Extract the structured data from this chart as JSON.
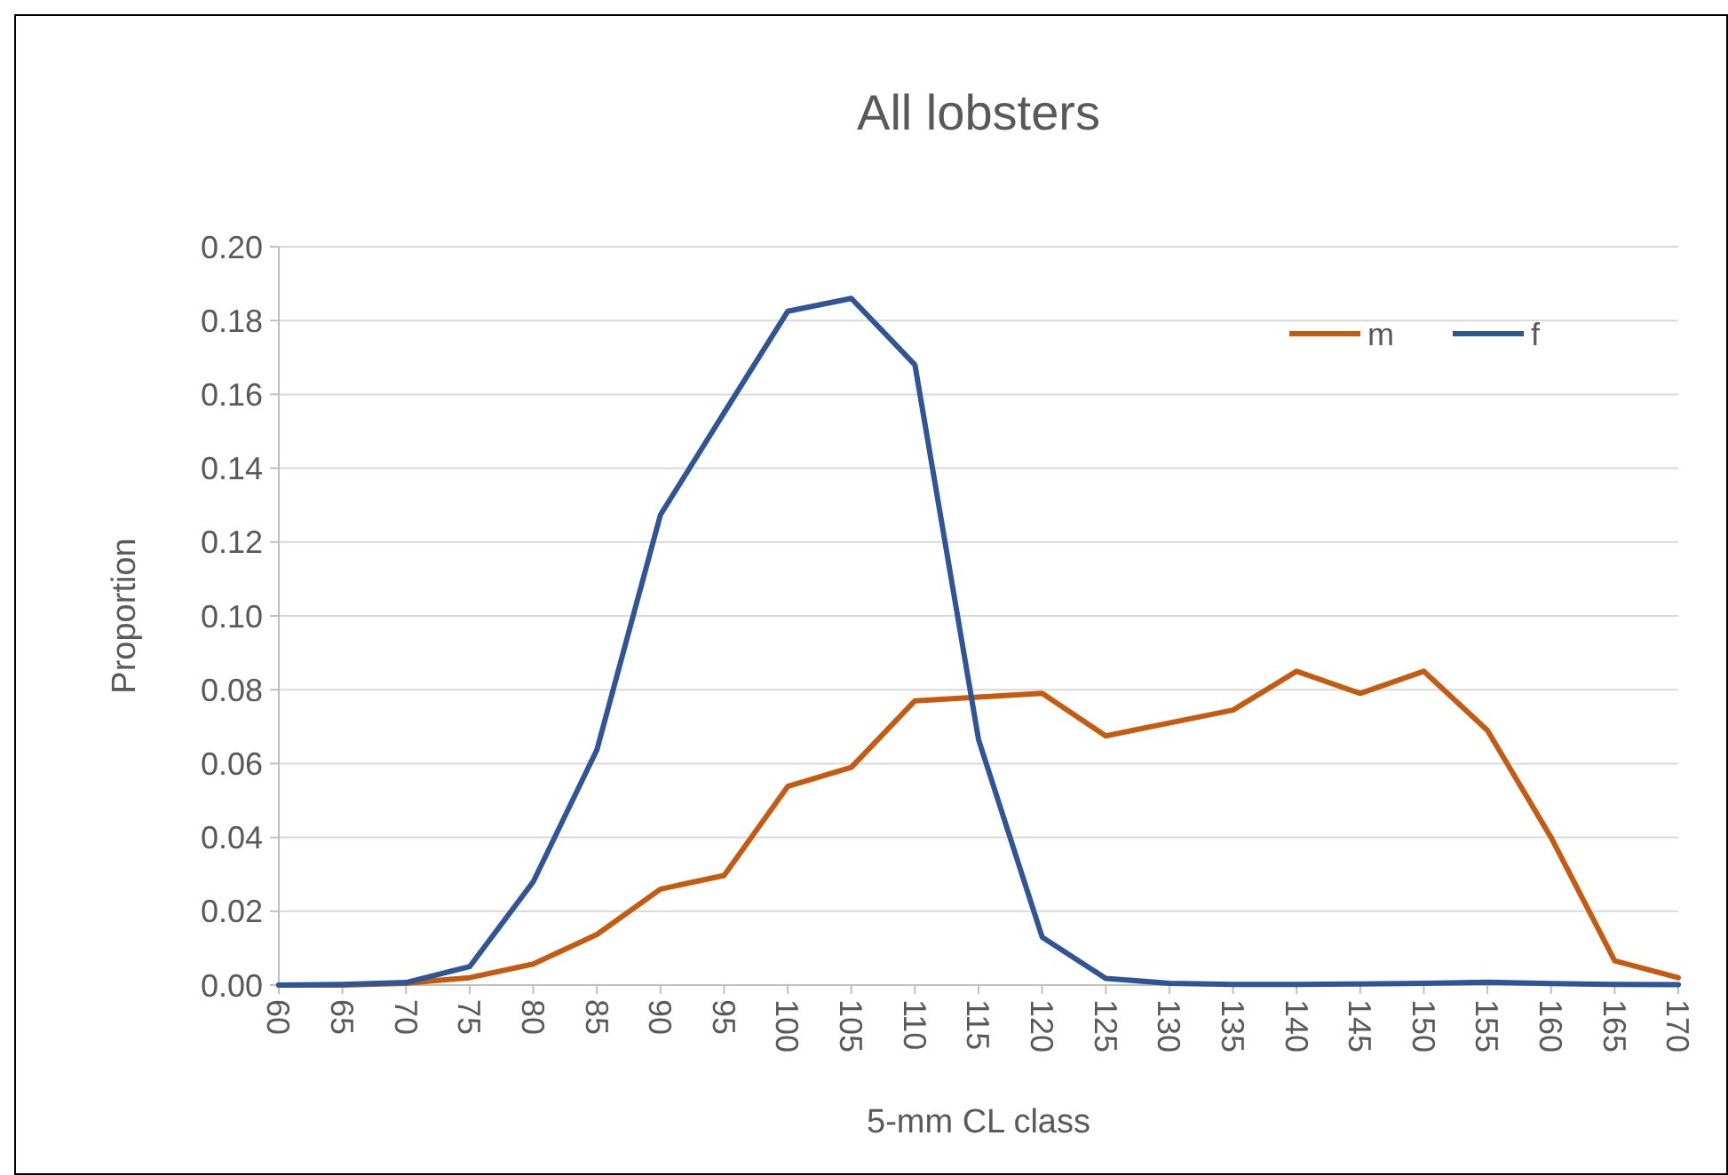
{
  "chart_data": {
    "type": "line",
    "title": "All lobsters",
    "xlabel": "5-mm CL class",
    "ylabel": "Proportion",
    "categories": [
      "60",
      "65",
      "70",
      "75",
      "80",
      "85",
      "90",
      "95",
      "100",
      "105",
      "110",
      "115",
      "120",
      "125",
      "130",
      "135",
      "140",
      "145",
      "150",
      "155",
      "160",
      "165",
      "170"
    ],
    "series": [
      {
        "name": "m",
        "color": "#c55a11",
        "values": [
          0,
          0,
          0.0005,
          0.002,
          0.0057,
          0.0137,
          0.026,
          0.0297,
          0.0538,
          0.059,
          0.077,
          0.078,
          0.079,
          0.0675,
          0.071,
          0.0745,
          0.085,
          0.079,
          0.085,
          0.069,
          0.04,
          0.0066,
          0.002
        ]
      },
      {
        "name": "f",
        "color": "#2f5597",
        "values": [
          0,
          0.0002,
          0.0007,
          0.005,
          0.028,
          0.0637,
          0.1274,
          0.155,
          0.1825,
          0.186,
          0.168,
          0.0665,
          0.013,
          0.0018,
          0.0005,
          0.0002,
          0.0002,
          0.0003,
          0.0005,
          0.0008,
          0.0004,
          0.0002,
          0.0001
        ]
      }
    ],
    "ylim": [
      0,
      0.2
    ],
    "yticks": [
      {
        "value": 0,
        "label": "0.00"
      },
      {
        "value": 0.02,
        "label": "0.02"
      },
      {
        "value": 0.04,
        "label": "0.04"
      },
      {
        "value": 0.06,
        "label": "0.06"
      },
      {
        "value": 0.08,
        "label": "0.08"
      },
      {
        "value": 0.1,
        "label": "0.10"
      },
      {
        "value": 0.12,
        "label": "0.12"
      },
      {
        "value": 0.14,
        "label": "0.14"
      },
      {
        "value": 0.16,
        "label": "0.16"
      },
      {
        "value": 0.18,
        "label": "0.18"
      },
      {
        "value": 0.2,
        "label": "0.20"
      }
    ],
    "grid": "y",
    "legend": "top right",
    "marker": "none",
    "line_style": "solid"
  }
}
